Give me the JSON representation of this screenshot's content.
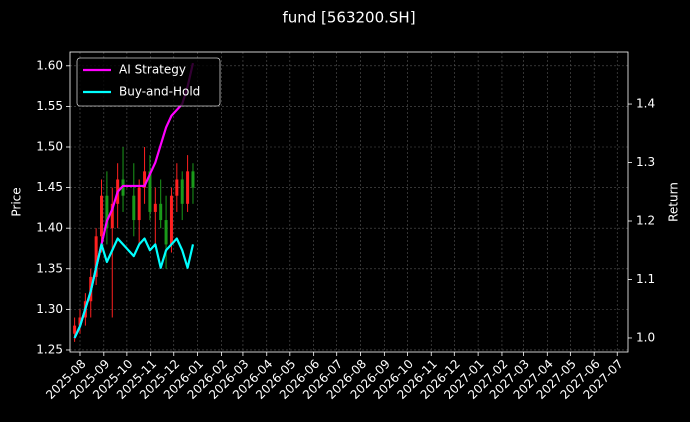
{
  "chart_data": {
    "type": "candlestick",
    "title": "fund [563200.SH]",
    "y_label": "Price",
    "y2_label": "Return",
    "x": [
      "2025-07-25",
      "2025-08-01",
      "2025-08-08",
      "2025-08-15",
      "2025-08-22",
      "2025-08-29",
      "2025-09-05",
      "2025-09-12",
      "2025-09-19",
      "2025-09-26",
      "2025-10-10",
      "2025-10-17",
      "2025-10-24",
      "2025-10-31",
      "2025-11-07",
      "2025-11-14",
      "2025-11-21",
      "2025-11-28",
      "2025-12-05",
      "2025-12-12",
      "2025-12-19",
      "2025-12-26"
    ],
    "open": [
      1.27,
      1.28,
      1.29,
      1.31,
      1.34,
      1.39,
      1.44,
      1.4,
      1.43,
      1.46,
      1.44,
      1.41,
      1.45,
      1.47,
      1.42,
      1.43,
      1.41,
      1.38,
      1.44,
      1.46,
      1.43,
      1.47
    ],
    "high": [
      1.29,
      1.3,
      1.32,
      1.35,
      1.4,
      1.46,
      1.47,
      1.45,
      1.48,
      1.5,
      1.48,
      1.46,
      1.5,
      1.49,
      1.45,
      1.46,
      1.44,
      1.45,
      1.48,
      1.47,
      1.49,
      1.48
    ],
    "low": [
      1.26,
      1.27,
      1.28,
      1.29,
      1.33,
      1.37,
      1.38,
      1.29,
      1.4,
      1.42,
      1.39,
      1.38,
      1.43,
      1.41,
      1.38,
      1.4,
      1.35,
      1.37,
      1.42,
      1.41,
      1.42,
      1.43
    ],
    "close": [
      1.28,
      1.29,
      1.31,
      1.34,
      1.39,
      1.44,
      1.4,
      1.43,
      1.46,
      1.44,
      1.41,
      1.45,
      1.47,
      1.42,
      1.43,
      1.41,
      1.38,
      1.44,
      1.46,
      1.43,
      1.47,
      1.45
    ],
    "up_color": "#ff2020",
    "down_color": "#1a9a1a",
    "series": [
      {
        "name": "AI Strategy",
        "color": "#ff00ff",
        "axis": "y2",
        "values": [
          1.0,
          1.02,
          1.05,
          1.08,
          1.12,
          1.16,
          1.2,
          1.22,
          1.25,
          1.26,
          1.26,
          1.26,
          1.26,
          1.28,
          1.3,
          1.33,
          1.36,
          1.38,
          1.39,
          1.4,
          1.43,
          1.47
        ]
      },
      {
        "name": "Buy-and-Hold",
        "color": "#00ffff",
        "axis": "y2",
        "values": [
          1.0,
          1.02,
          1.05,
          1.08,
          1.12,
          1.16,
          1.13,
          1.15,
          1.17,
          1.16,
          1.14,
          1.16,
          1.17,
          1.15,
          1.16,
          1.12,
          1.15,
          1.16,
          1.17,
          1.15,
          1.12,
          1.16
        ]
      }
    ],
    "xlim": [
      "2025-07-19",
      "2027-07-15"
    ],
    "xticks": [
      "2025-08",
      "2025-09",
      "2025-10",
      "2025-11",
      "2025-12",
      "2026-01",
      "2026-02",
      "2026-03",
      "2026-04",
      "2026-05",
      "2026-06",
      "2026-07",
      "2026-08",
      "2026-09",
      "2026-10",
      "2026-11",
      "2026-12",
      "2027-01",
      "2027-02",
      "2027-03",
      "2027-04",
      "2027-05",
      "2027-06",
      "2027-07"
    ],
    "ylim": [
      1.2475,
      1.617
    ],
    "yticks": [
      1.25,
      {
        "value": 1.3,
        "label": "1.30"
      },
      1.35,
      {
        "value": 1.4,
        "label": "1.40"
      },
      1.45,
      {
        "value": 1.5,
        "label": "1.50"
      },
      1.55,
      {
        "value": 1.6,
        "label": "1.60"
      }
    ],
    "y2lim": [
      0.976,
      1.489
    ],
    "y2ticks": [
      {
        "value": 1,
        "label": "1.0"
      },
      1.1,
      1.2,
      1.3,
      1.4
    ],
    "grid": true,
    "legend": "upper-left"
  }
}
